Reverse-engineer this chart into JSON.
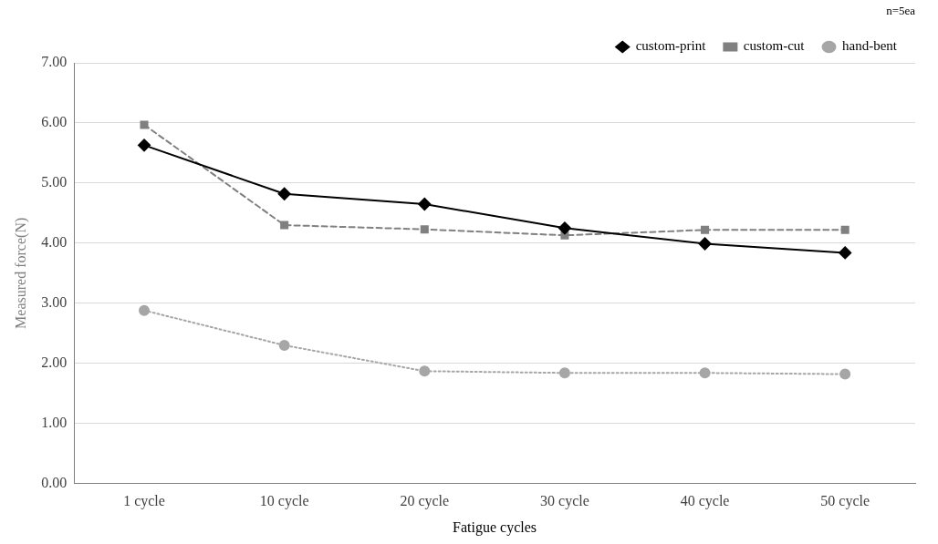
{
  "chart_data": {
    "type": "line",
    "xlabel": "Fatigue cycles",
    "ylabel": "Measured force(N)",
    "annotations": [
      "n=5ea"
    ],
    "categories": [
      "1 cycle",
      "10 cycle",
      "20 cycle",
      "30 cycle",
      "40 cycle",
      "50 cycle"
    ],
    "series": [
      {
        "name": "custom-print",
        "color": "#000000",
        "marker": "diamond",
        "line_style": "solid",
        "values": [
          5.63,
          4.82,
          4.65,
          4.25,
          3.99,
          3.84
        ]
      },
      {
        "name": "custom-cut",
        "color": "#808080",
        "marker": "square",
        "line_style": "dashed",
        "values": [
          5.97,
          4.3,
          4.23,
          4.13,
          4.22,
          4.22
        ]
      },
      {
        "name": "hand-bent",
        "color": "#a6a6a6",
        "marker": "circle",
        "line_style": "dotted",
        "values": [
          2.88,
          2.3,
          1.87,
          1.84,
          1.84,
          1.82
        ]
      }
    ],
    "ylim": [
      0,
      7
    ],
    "yticks": [
      {
        "value": 0,
        "label": "0.00"
      },
      {
        "value": 1,
        "label": "1.00"
      },
      {
        "value": 2,
        "label": "2.00"
      },
      {
        "value": 3,
        "label": "3.00"
      },
      {
        "value": 4,
        "label": "4.00"
      },
      {
        "value": 5,
        "label": "5.00"
      },
      {
        "value": 6,
        "label": "6.00"
      },
      {
        "value": 7,
        "label": "7.00"
      }
    ],
    "grid": "y",
    "legend": "top right"
  }
}
